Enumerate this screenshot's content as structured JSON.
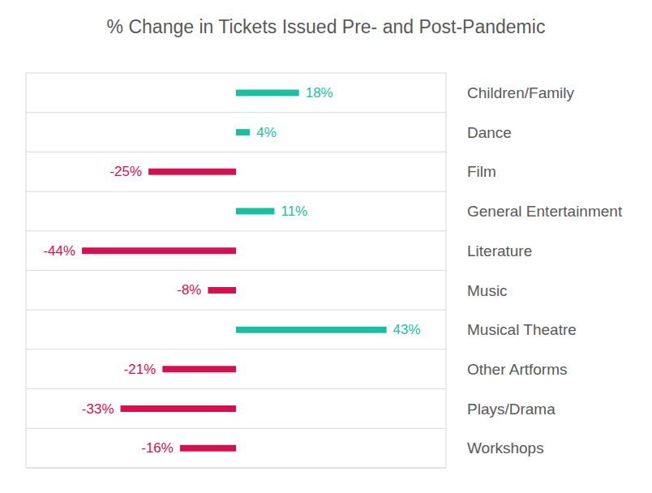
{
  "chart_data": {
    "type": "bar",
    "title": "% Change in Tickets Issued Pre- and Post-Pandemic",
    "orientation": "horizontal",
    "categories": [
      "Children/Family",
      "Dance",
      "Film",
      "General Entertainment",
      "Literature",
      "Music",
      "Musical Theatre",
      "Other Artforms",
      "Plays/Drama",
      "Workshops"
    ],
    "values": [
      18,
      4,
      -25,
      11,
      -44,
      -8,
      43,
      -21,
      -33,
      -16
    ],
    "value_labels": [
      "18%",
      "4%",
      "-25%",
      "11%",
      "-44%",
      "-8%",
      "43%",
      "-21%",
      "-33%",
      "-16%"
    ],
    "colors": [
      "#1abf9f",
      "#1abf9f",
      "#d6104f",
      "#1abf9f",
      "#d6104f",
      "#d6104f",
      "#1abf9f",
      "#d6104f",
      "#d6104f",
      "#d6104f"
    ],
    "xlim": [
      -60,
      60
    ],
    "xticks": [
      0
    ],
    "grid": true,
    "data_labels": true,
    "tick_labels": "y"
  }
}
